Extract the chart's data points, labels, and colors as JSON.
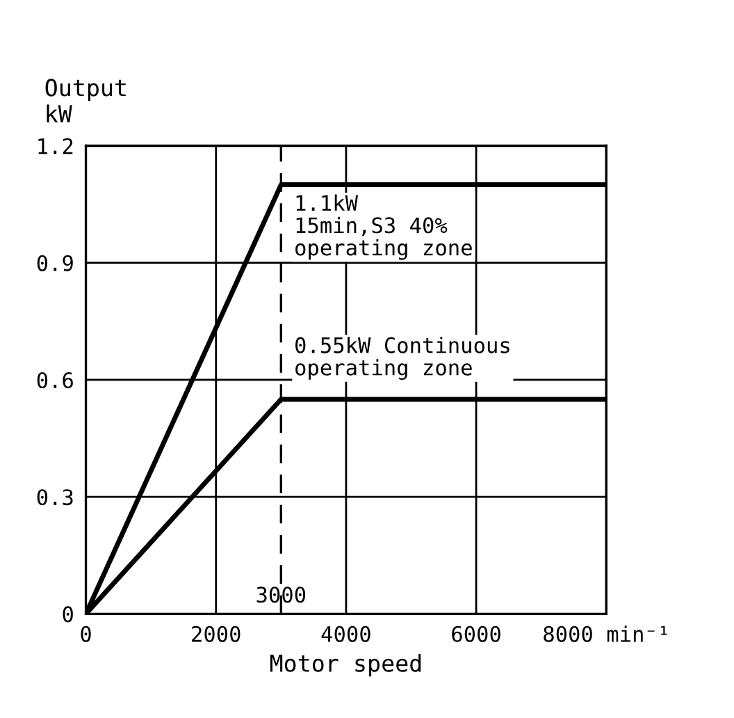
{
  "chart_data": {
    "type": "line",
    "xlabel": "Motor speed",
    "ylabel": "Output\nkW",
    "series": [
      {
        "color": "#000000",
        "x": [
          0,
          3000,
          8000
        ],
        "values": [
          0,
          1.1,
          1.1
        ]
      },
      {
        "color": "#000000",
        "x": [
          0,
          3000,
          8000
        ],
        "values": [
          0,
          0.55,
          0.55
        ]
      }
    ],
    "xlim": [
      0,
      8000
    ],
    "ylim": [
      0,
      1.2
    ],
    "xticks": [
      0,
      2000,
      4000,
      6000,
      {
        "value": 8000,
        "label": "8000 min⁻¹"
      }
    ],
    "yticks": [
      0,
      0.3,
      0.6,
      0.9,
      1.2
    ],
    "grid": true,
    "marker": "none",
    "line_style": "solid",
    "ref_lines": [
      {
        "axis": "x",
        "value": 3000,
        "label": "3000",
        "color": "#000000",
        "line_style": "dashed"
      }
    ],
    "annotations": [
      {
        "text": "1.1kW\n15min,S3 40%\noperating zone",
        "x": 3200,
        "y": 1.1
      },
      "0.55kW Continuous\noperating zone"
    ]
  }
}
